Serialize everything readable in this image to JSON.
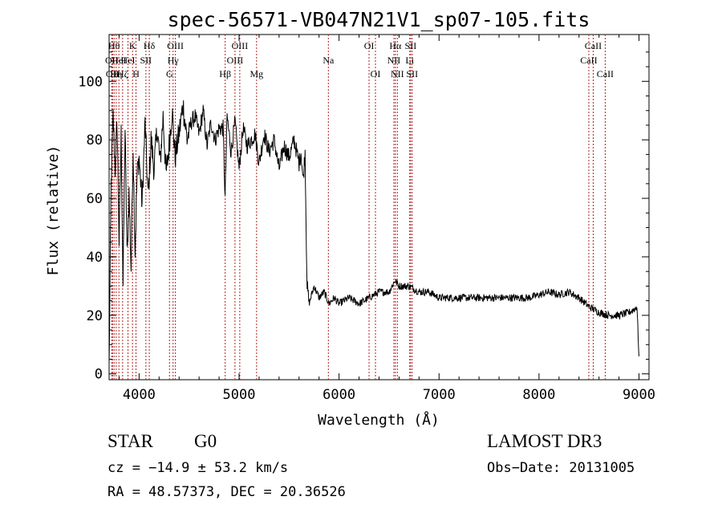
{
  "chart_data": {
    "type": "line",
    "title": "spec-56571-VB047N21V1_sp07-105.fits",
    "xlabel": "Wavelength (Å)",
    "ylabel": "Flux (relative)",
    "xlim": [
      3700,
      9100
    ],
    "ylim": [
      -2,
      116
    ],
    "xticks": [
      4000,
      5000,
      6000,
      7000,
      8000,
      9000
    ],
    "yticks": [
      0,
      20,
      40,
      60,
      80,
      100
    ],
    "grid": false,
    "series": [
      {
        "name": "flux",
        "x": [
          3700,
          3720,
          3740,
          3760,
          3780,
          3800,
          3820,
          3840,
          3860,
          3880,
          3900,
          3920,
          3940,
          3960,
          3980,
          4000,
          4030,
          4060,
          4090,
          4120,
          4150,
          4180,
          4210,
          4240,
          4270,
          4300,
          4330,
          4360,
          4400,
          4440,
          4480,
          4520,
          4560,
          4600,
          4640,
          4680,
          4720,
          4760,
          4800,
          4840,
          4860,
          4880,
          4920,
          4960,
          5000,
          5040,
          5080,
          5120,
          5160,
          5200,
          5250,
          5300,
          5350,
          5400,
          5450,
          5500,
          5550,
          5600,
          5620,
          5640,
          5660,
          5670,
          5680,
          5700,
          5750,
          5800,
          5850,
          5900,
          5950,
          6000,
          6100,
          6200,
          6300,
          6400,
          6500,
          6560,
          6600,
          6700,
          6800,
          6900,
          7000,
          7100,
          7200,
          7300,
          7400,
          7500,
          7600,
          7700,
          7800,
          7900,
          8000,
          8100,
          8200,
          8300,
          8400,
          8500,
          8600,
          8700,
          8800,
          8900,
          8950,
          8980,
          9000
        ],
        "values": [
          2,
          65,
          88,
          70,
          86,
          45,
          82,
          30,
          84,
          40,
          62,
          36,
          78,
          42,
          68,
          74,
          58,
          86,
          60,
          80,
          70,
          84,
          72,
          88,
          68,
          78,
          90,
          74,
          82,
          92,
          80,
          86,
          88,
          82,
          90,
          78,
          86,
          80,
          84,
          84,
          60,
          88,
          76,
          86,
          70,
          84,
          78,
          80,
          82,
          72,
          82,
          76,
          80,
          70,
          78,
          74,
          80,
          72,
          76,
          66,
          76,
          52,
          30,
          24,
          30,
          26,
          28,
          24,
          26,
          24,
          26,
          24,
          26,
          28,
          28,
          32,
          30,
          30,
          28,
          28,
          26,
          26,
          26,
          26,
          26,
          26,
          26,
          26,
          26,
          26,
          27,
          28,
          27,
          28,
          26,
          23,
          21,
          20,
          20,
          21,
          22,
          23,
          6
        ]
      }
    ],
    "lines": [
      {
        "x": 3727,
        "label": "OII",
        "row": 1
      },
      {
        "x": 3734,
        "label": "OII",
        "row": 2
      },
      {
        "x": 3750,
        "label": "Hθ",
        "row": 0
      },
      {
        "x": 3771,
        "label": "Hη",
        "row": 2
      },
      {
        "x": 3798,
        "label": "HeI",
        "row": 1
      },
      {
        "x": 3835,
        "label": "Hζ",
        "row": 2
      },
      {
        "x": 3889,
        "label": "HeI",
        "row": 1
      },
      {
        "x": 3934,
        "label": "K",
        "row": 0
      },
      {
        "x": 3969,
        "label": "H",
        "row": 2
      },
      {
        "x": 4068,
        "label": "SII",
        "row": 1
      },
      {
        "x": 4102,
        "label": "Hδ",
        "row": 0
      },
      {
        "x": 4304,
        "label": "G",
        "row": 2
      },
      {
        "x": 4340,
        "label": "Hγ",
        "row": 1
      },
      {
        "x": 4363,
        "label": "OIII",
        "row": 0
      },
      {
        "x": 4861,
        "label": "Hβ",
        "row": 2
      },
      {
        "x": 4959,
        "label": "OIII",
        "row": 1
      },
      {
        "x": 5007,
        "label": "OIII",
        "row": 0
      },
      {
        "x": 5175,
        "label": "Mg",
        "row": 2
      },
      {
        "x": 5893,
        "label": "Na",
        "row": 1
      },
      {
        "x": 6300,
        "label": "OI",
        "row": 0
      },
      {
        "x": 6364,
        "label": "OI",
        "row": 2
      },
      {
        "x": 6548,
        "label": "NII",
        "row": 1
      },
      {
        "x": 6563,
        "label": "Hα",
        "row": 0
      },
      {
        "x": 6583,
        "label": "NII",
        "row": 2
      },
      {
        "x": 6707,
        "label": "Li",
        "row": 1
      },
      {
        "x": 6716,
        "label": "SII",
        "row": 0
      },
      {
        "x": 6731,
        "label": "SII",
        "row": 2
      },
      {
        "x": 8498,
        "label": "CaII",
        "row": 1
      },
      {
        "x": 8542,
        "label": "CaII",
        "row": 0
      },
      {
        "x": 8662,
        "label": "CaII",
        "row": 2
      }
    ]
  },
  "footer": {
    "class_label": "STAR",
    "subclass": "G0",
    "survey": "LAMOST DR3",
    "redshift": "cz = −14.9 ± 53.2 km/s",
    "obs_date": "Obs−Date: 20131005",
    "coords": "RA =  48.57373, DEC =  20.36526"
  }
}
